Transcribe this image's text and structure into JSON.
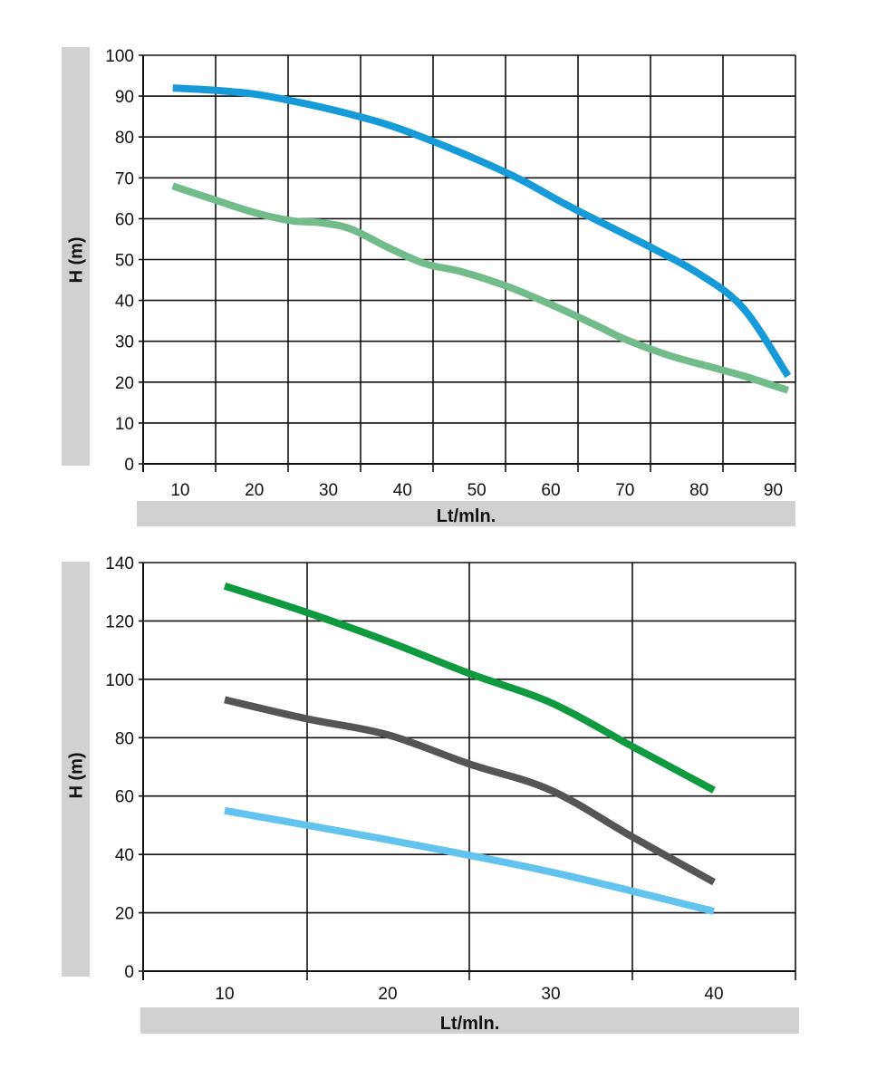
{
  "chart_data": [
    {
      "type": "line",
      "xlabel": "Lt/mln.",
      "ylabel": "H (m)",
      "xlim": [
        5,
        93
      ],
      "ylim": [
        0,
        100
      ],
      "x_ticks": [
        10,
        20,
        30,
        40,
        50,
        60,
        70,
        80,
        90
      ],
      "y_ticks": [
        0,
        10,
        20,
        30,
        40,
        50,
        60,
        70,
        80,
        90,
        100
      ],
      "grid": true,
      "series": [
        {
          "color": "#169bd8",
          "x": [
            9,
            14,
            20,
            26,
            32,
            38,
            44,
            50,
            56,
            62,
            68,
            74,
            80,
            86,
            92
          ],
          "y": [
            92,
            91.5,
            90.5,
            88.5,
            86,
            83,
            79,
            74.5,
            69.5,
            63.5,
            58,
            52.5,
            46.5,
            38,
            21.5
          ]
        },
        {
          "color": "#72bb8a",
          "x": [
            9,
            14,
            20,
            25,
            29,
            33,
            38,
            43,
            48,
            54,
            60,
            66,
            70,
            76,
            82,
            86,
            92
          ],
          "y": [
            68,
            65,
            61.5,
            59.5,
            59,
            57.5,
            53,
            49,
            47,
            43.5,
            39,
            34,
            30.5,
            26.5,
            23.5,
            21.5,
            18
          ]
        }
      ]
    },
    {
      "type": "line",
      "xlabel": "Lt/mln.",
      "ylabel": "H (m)",
      "xlim": [
        5,
        45
      ],
      "ylim": [
        0,
        140
      ],
      "x_ticks": [
        10,
        20,
        30,
        40
      ],
      "y_ticks": [
        0,
        20,
        40,
        60,
        80,
        100,
        120,
        140
      ],
      "grid": true,
      "series": [
        {
          "color": "#0f9a3f",
          "x": [
            10,
            15,
            20,
            25,
            30,
            35,
            40
          ],
          "y": [
            132,
            123,
            113,
            102,
            92,
            77,
            62
          ]
        },
        {
          "color": "#555555",
          "x": [
            10,
            15,
            20,
            25,
            30,
            35,
            40
          ],
          "y": [
            93,
            86.5,
            81,
            71,
            62,
            46,
            30.5
          ]
        },
        {
          "color": "#62c4ee",
          "x": [
            10,
            20,
            30,
            40
          ],
          "y": [
            55,
            45,
            34,
            20.5
          ]
        }
      ]
    }
  ]
}
